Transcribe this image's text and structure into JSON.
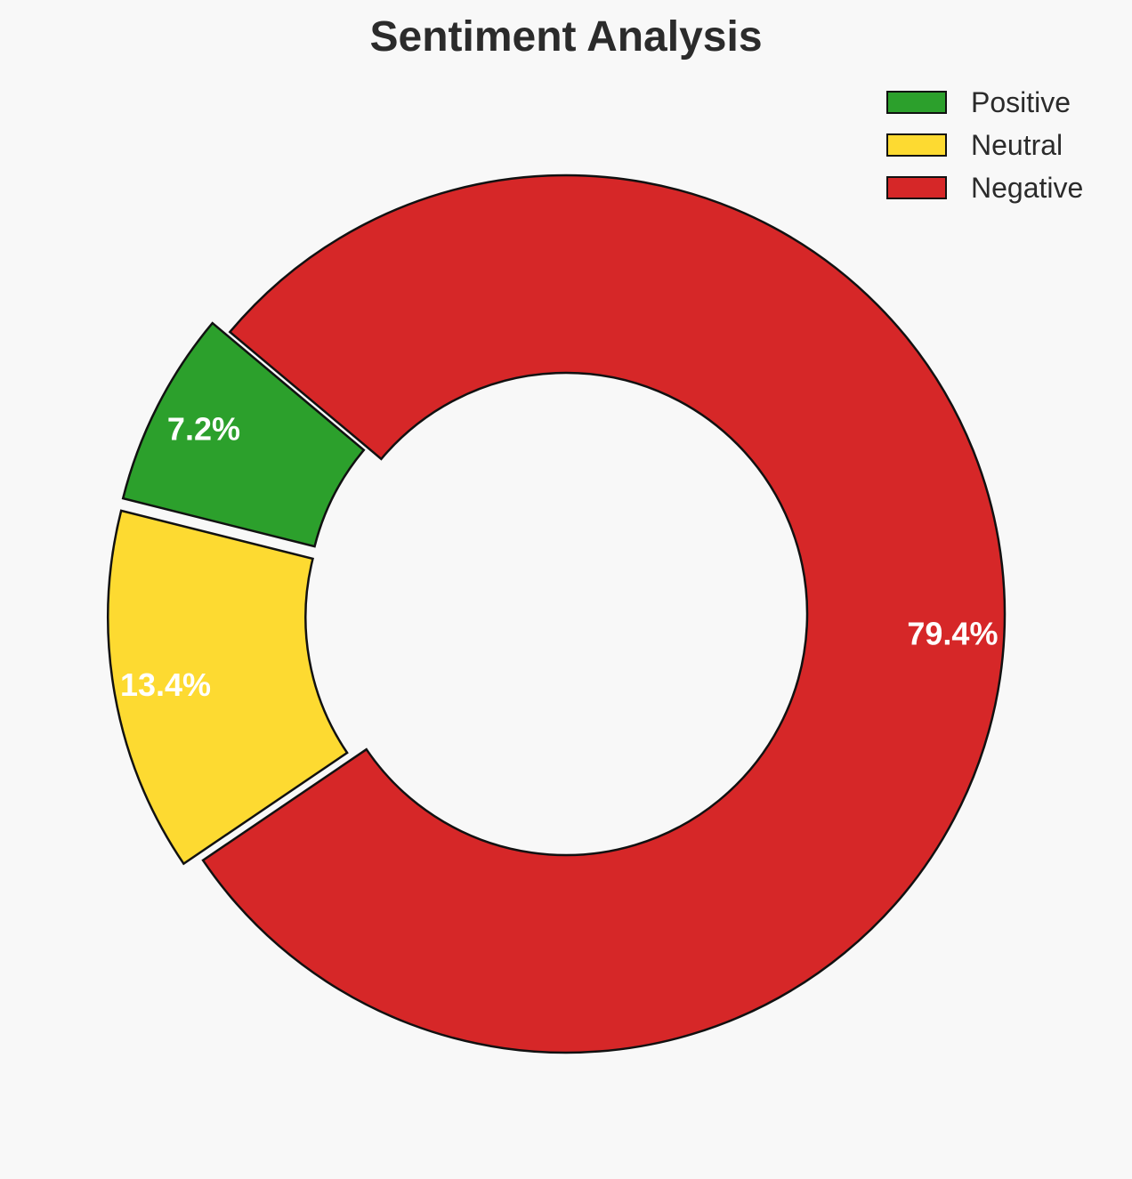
{
  "chart_data": {
    "type": "pie",
    "variant": "donut",
    "title": "Sentiment Analysis",
    "categories": [
      "Positive",
      "Neutral",
      "Negative"
    ],
    "values": [
      7.2,
      13.4,
      79.4
    ],
    "labels": [
      "7.2%",
      "13.4%",
      "79.4%"
    ],
    "colors": [
      "#2ca02c",
      "#fdda31",
      "#d62728"
    ],
    "exploded": [
      true,
      true,
      false
    ],
    "legend": {
      "placement": "top-right",
      "entries": [
        "Positive",
        "Neutral",
        "Negative"
      ]
    }
  }
}
